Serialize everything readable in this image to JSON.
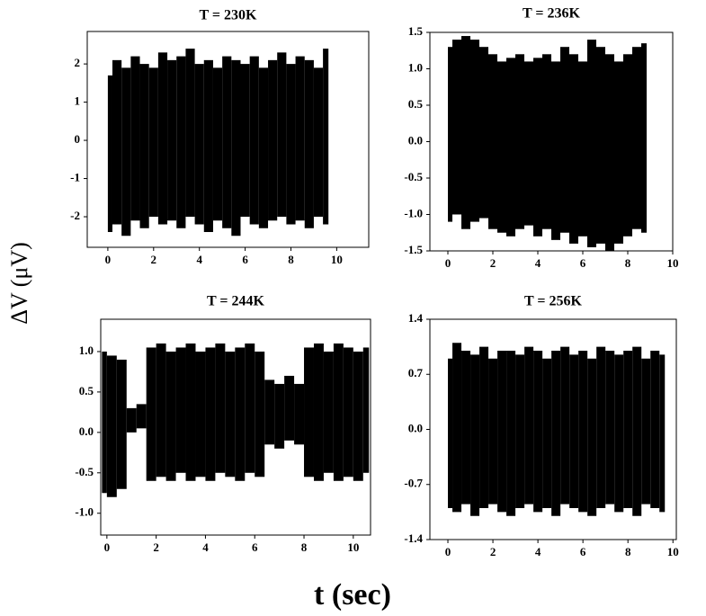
{
  "chart_data": [
    {
      "type": "band",
      "title": "T = 230K",
      "color": "#000000",
      "x": [
        0,
        0.4,
        0.8,
        1.2,
        1.6,
        2.0,
        2.4,
        2.8,
        3.2,
        3.6,
        4.0,
        4.4,
        4.8,
        5.2,
        5.6,
        6.0,
        6.4,
        6.8,
        7.2,
        7.6,
        8.0,
        8.4,
        8.8,
        9.2,
        9.6
      ],
      "upper": [
        1.7,
        2.1,
        1.9,
        2.2,
        2.0,
        1.9,
        2.3,
        2.1,
        2.2,
        2.4,
        2.0,
        2.1,
        1.9,
        2.2,
        2.1,
        2.0,
        2.2,
        1.9,
        2.1,
        2.3,
        2.0,
        2.2,
        2.1,
        1.9,
        2.4
      ],
      "lower": [
        -2.4,
        -2.2,
        -2.5,
        -2.1,
        -2.3,
        -2.0,
        -2.2,
        -2.1,
        -2.3,
        -2.0,
        -2.2,
        -2.4,
        -2.1,
        -2.3,
        -2.5,
        -2.0,
        -2.2,
        -2.3,
        -2.1,
        -2.0,
        -2.2,
        -2.1,
        -2.3,
        -2.0,
        -2.2
      ],
      "xlim": [
        -0.9,
        11.4
      ],
      "xticks": [
        0,
        2,
        4,
        6,
        8,
        10
      ],
      "ylim": [
        -2.8,
        2.85
      ],
      "yticks": [
        -2,
        -1,
        0,
        1,
        2
      ]
    },
    {
      "type": "band",
      "title": "T = 236K",
      "color": "#000000",
      "x": [
        0,
        0.4,
        0.8,
        1.2,
        1.6,
        2.0,
        2.4,
        2.8,
        3.2,
        3.6,
        4.0,
        4.4,
        4.8,
        5.2,
        5.6,
        6.0,
        6.4,
        6.8,
        7.2,
        7.6,
        8.0,
        8.4,
        8.8
      ],
      "upper": [
        1.3,
        1.4,
        1.45,
        1.4,
        1.3,
        1.2,
        1.1,
        1.15,
        1.2,
        1.1,
        1.15,
        1.2,
        1.1,
        1.3,
        1.2,
        1.1,
        1.4,
        1.3,
        1.2,
        1.1,
        1.2,
        1.3,
        1.35
      ],
      "lower": [
        -1.1,
        -1.0,
        -1.2,
        -1.1,
        -1.05,
        -1.2,
        -1.25,
        -1.3,
        -1.2,
        -1.15,
        -1.3,
        -1.2,
        -1.35,
        -1.25,
        -1.4,
        -1.3,
        -1.45,
        -1.4,
        -1.5,
        -1.4,
        -1.3,
        -1.2,
        -1.25
      ],
      "xlim": [
        -0.8,
        10
      ],
      "xticks": [
        0,
        2,
        4,
        6,
        8,
        10
      ],
      "ylim": [
        -1.5,
        1.5
      ],
      "yticks": [
        -1.5,
        {
          "value": -1,
          "label": "-1.0"
        },
        -0.5,
        {
          "value": 0,
          "label": "0.0"
        },
        0.5,
        {
          "value": 1,
          "label": "1.0"
        },
        1.5
      ]
    },
    {
      "type": "band",
      "title": "T = 244K",
      "color": "#000000",
      "x": [
        -0.2,
        0.2,
        0.6,
        1.0,
        1.4,
        1.8,
        2.2,
        2.6,
        3.0,
        3.4,
        3.8,
        4.2,
        4.6,
        5.0,
        5.4,
        5.8,
        6.2,
        6.6,
        7.0,
        7.4,
        7.8,
        8.2,
        8.6,
        9.0,
        9.4,
        9.8,
        10.2,
        10.6
      ],
      "upper": [
        1.0,
        0.95,
        0.9,
        0.3,
        0.35,
        1.05,
        1.1,
        1.0,
        1.05,
        1.1,
        1.0,
        1.05,
        1.1,
        1.0,
        1.05,
        1.1,
        1.0,
        0.65,
        0.6,
        0.7,
        0.6,
        1.05,
        1.1,
        1.0,
        1.1,
        1.05,
        1.0,
        1.05
      ],
      "lower": [
        -0.75,
        -0.8,
        -0.7,
        0.0,
        0.05,
        -0.6,
        -0.55,
        -0.6,
        -0.5,
        -0.6,
        -0.55,
        -0.6,
        -0.5,
        -0.55,
        -0.6,
        -0.5,
        -0.55,
        -0.15,
        -0.2,
        -0.1,
        -0.15,
        -0.55,
        -0.6,
        -0.5,
        -0.6,
        -0.55,
        -0.6,
        -0.5
      ],
      "xlim": [
        -0.25,
        10.7
      ],
      "xticks": [
        0,
        2,
        4,
        6,
        8,
        10
      ],
      "ylim": [
        -1.27,
        1.4
      ],
      "yticks": [
        {
          "value": -1,
          "label": "-1.0"
        },
        -0.5,
        {
          "value": 0,
          "label": "0.0"
        },
        0.5,
        {
          "value": 1,
          "label": "1.0"
        }
      ]
    },
    {
      "type": "band",
      "title": "T = 256K",
      "color": "#000000",
      "x": [
        0,
        0.4,
        0.8,
        1.2,
        1.6,
        2.0,
        2.4,
        2.8,
        3.2,
        3.6,
        4.0,
        4.4,
        4.8,
        5.2,
        5.6,
        6.0,
        6.4,
        6.8,
        7.2,
        7.6,
        8.0,
        8.4,
        8.8,
        9.2,
        9.6
      ],
      "upper": [
        0.9,
        1.1,
        1.0,
        0.95,
        1.05,
        0.9,
        1.0,
        1.0,
        0.95,
        1.05,
        1.0,
        0.9,
        1.0,
        1.05,
        0.95,
        1.0,
        0.9,
        1.05,
        1.0,
        0.95,
        1.0,
        1.05,
        0.9,
        1.0,
        0.95
      ],
      "lower": [
        -1.0,
        -1.05,
        -0.95,
        -1.1,
        -1.0,
        -0.95,
        -1.05,
        -1.1,
        -1.0,
        -0.95,
        -1.05,
        -1.0,
        -1.1,
        -0.95,
        -1.0,
        -1.05,
        -1.1,
        -1.0,
        -0.95,
        -1.05,
        -1.0,
        -1.1,
        -0.95,
        -1.0,
        -1.05
      ],
      "xlim": [
        -0.8,
        10.15
      ],
      "xticks": [
        0,
        2,
        4,
        6,
        8,
        10
      ],
      "ylim": [
        -1.4,
        1.4
      ],
      "yticks": [
        -1.4,
        -0.7,
        {
          "value": 0,
          "label": "0.0"
        },
        0.7,
        1.4
      ]
    }
  ],
  "shared_labels": {
    "x": "t (sec)",
    "y": "ΔV (μV)"
  }
}
